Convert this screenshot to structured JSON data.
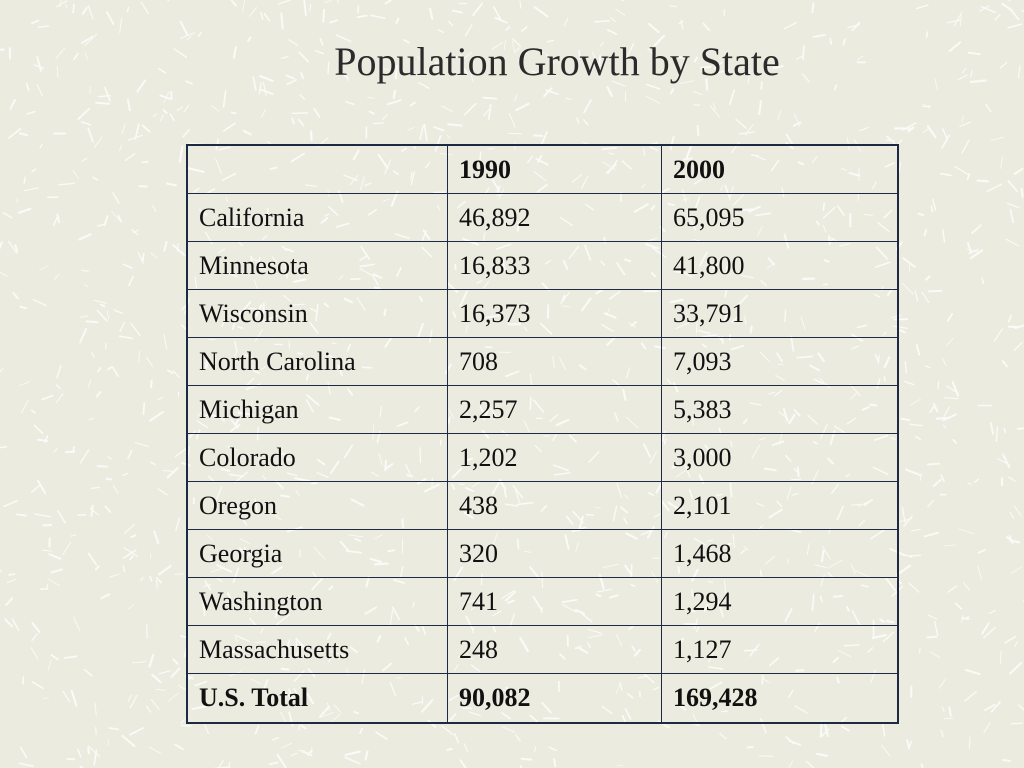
{
  "title": "Population Growth by State",
  "table": {
    "headers": [
      "",
      "1990",
      "2000"
    ],
    "rows": [
      {
        "state": "California",
        "y1990": "46,892",
        "y2000": "65,095"
      },
      {
        "state": "Minnesota",
        "y1990": "16,833",
        "y2000": "41,800"
      },
      {
        "state": "Wisconsin",
        "y1990": "16,373",
        "y2000": "33,791"
      },
      {
        "state": "North Carolina",
        "y1990": "708",
        "y2000": "7,093"
      },
      {
        "state": "Michigan",
        "y1990": "2,257",
        "y2000": "5,383"
      },
      {
        "state": "Colorado",
        "y1990": "1,202",
        "y2000": "3,000"
      },
      {
        "state": "Oregon",
        "y1990": "438",
        "y2000": "2,101"
      },
      {
        "state": "Georgia",
        "y1990": "320",
        "y2000": "1,468"
      },
      {
        "state": "Washington",
        "y1990": "741",
        "y2000": "1,294"
      },
      {
        "state": "Massachusetts",
        "y1990": "248",
        "y2000": "1,127"
      }
    ],
    "total": {
      "state": "U.S. Total",
      "y1990": "90,082",
      "y2000": "169,428"
    }
  },
  "colors": {
    "background": "#ecebe0",
    "texture": "#ffffff",
    "border": "#1d2a44",
    "text": "#111111"
  }
}
